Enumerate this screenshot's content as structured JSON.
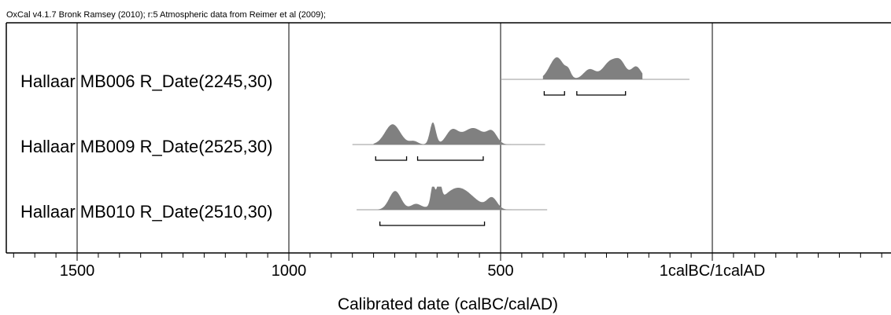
{
  "credit": "OxCal v4.1.7 Bronk Ramsey (2010); r:5 Atmospheric data from Reimer et al (2009);",
  "chart_data": {
    "type": "area",
    "title": "",
    "xlabel": "Calibrated date (calBC/calAD)",
    "ylabel": "",
    "xlim": [
      -1668,
      422
    ],
    "x_direction": "BC dates on the left, AD dates on the right",
    "grid": true,
    "ticks": [
      {
        "value": -1500,
        "label": "1500"
      },
      {
        "value": -1000,
        "label": "1000"
      },
      {
        "value": -500,
        "label": "500"
      },
      {
        "value": 0,
        "label": "1calBC/1calAD"
      }
    ],
    "minor_tick_step": 50,
    "series": [
      {
        "name": "Hallaar MB006 R_Date(2245,30)",
        "likelihood_range": [
          -500,
          -54
        ],
        "posterior_peaks": [
          {
            "center": -367,
            "width": 17,
            "height": 1.0
          },
          {
            "center": -340,
            "width": 6,
            "height": 0.25
          },
          {
            "center": -290,
            "width": 14,
            "height": 0.45
          },
          {
            "center": -240,
            "width": 18,
            "height": 0.82
          },
          {
            "center": -215,
            "width": 12,
            "height": 0.55
          },
          {
            "center": -180,
            "width": 12,
            "height": 0.58
          }
        ],
        "posterior_range": [
          -400,
          -165
        ],
        "ranges_95": [
          [
            -397,
            -349
          ],
          [
            -320,
            -205
          ]
        ],
        "fill": "#808080"
      },
      {
        "name": "Hallaar MB009 R_Date(2525,30)",
        "likelihood_range": [
          -850,
          -395
        ],
        "posterior_peaks": [
          {
            "center": -755,
            "width": 18,
            "height": 0.92
          },
          {
            "center": -705,
            "width": 10,
            "height": 0.15
          },
          {
            "center": -660,
            "width": 7,
            "height": 1.0
          },
          {
            "center": -615,
            "width": 14,
            "height": 0.6
          },
          {
            "center": -565,
            "width": 25,
            "height": 0.75
          },
          {
            "center": -520,
            "width": 12,
            "height": 0.5
          }
        ],
        "posterior_range": [
          -800,
          -420
        ],
        "ranges_95": [
          [
            -795,
            -722
          ],
          [
            -696,
            -541
          ]
        ],
        "fill": "#808080"
      },
      {
        "name": "Hallaar MB010 R_Date(2510,30)",
        "likelihood_range": [
          -840,
          -390
        ],
        "posterior_peaks": [
          {
            "center": -749,
            "width": 14,
            "height": 0.85
          },
          {
            "center": -700,
            "width": 12,
            "height": 0.25
          },
          {
            "center": -660,
            "width": 5,
            "height": 0.9
          },
          {
            "center": -645,
            "width": 5,
            "height": 0.95
          },
          {
            "center": -600,
            "width": 35,
            "height": 1.0
          },
          {
            "center": -520,
            "width": 12,
            "height": 0.5
          }
        ],
        "posterior_range": [
          -790,
          -400
        ],
        "ranges_95": [
          [
            -785,
            -538
          ]
        ],
        "fill": "#808080"
      }
    ]
  }
}
